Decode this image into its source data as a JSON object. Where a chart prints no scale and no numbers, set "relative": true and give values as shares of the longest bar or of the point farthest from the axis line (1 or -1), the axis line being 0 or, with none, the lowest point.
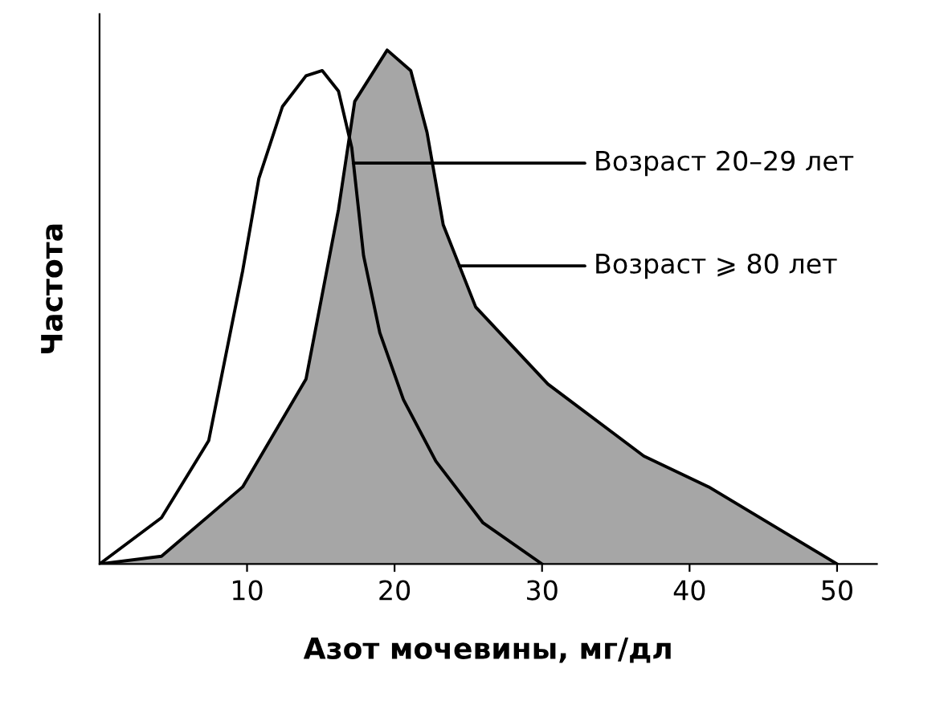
{
  "chart_data": {
    "type": "area",
    "relative": true,
    "xlabel": "Азот мочевины, мг/дл",
    "ylabel": "Частота",
    "xlim": [
      0,
      52.7
    ],
    "xticks": [
      10,
      20,
      30,
      40,
      50
    ],
    "grid": false,
    "legend": "right",
    "series": [
      {
        "name": "Возраст ⩾ 80 лет",
        "color": "#a6a6a6",
        "x": [
          0,
          4.2,
          9.7,
          14,
          16.2,
          17.3,
          19.5,
          21.1,
          22.2,
          23.3,
          25.5,
          30.4,
          36.9,
          41.3,
          50
        ],
        "values": [
          0,
          0.015,
          0.15,
          0.36,
          0.69,
          0.9,
          1,
          0.96,
          0.84,
          0.66,
          0.5,
          0.35,
          0.21,
          0.15,
          0
        ]
      },
      {
        "name": "Возраст 20–29 лет",
        "type": "line",
        "color": "#000000",
        "x": [
          0,
          4.2,
          7.4,
          9.7,
          10.8,
          12.4,
          14,
          15.1,
          16.2,
          17.1,
          17.9,
          19,
          20.6,
          22.8,
          26,
          30
        ],
        "values": [
          0,
          0.09,
          0.24,
          0.57,
          0.75,
          0.89,
          0.95,
          0.96,
          0.92,
          0.81,
          0.6,
          0.45,
          0.32,
          0.2,
          0.08,
          0
        ]
      }
    ]
  }
}
